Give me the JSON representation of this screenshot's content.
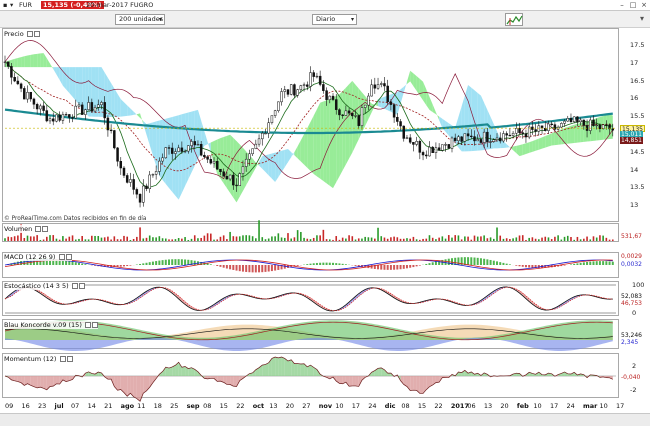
{
  "title_bar": {
    "ticker": "FUR",
    "price_change": "15,135 (-0,49%)",
    "date_name": "20-mar-2017 FUGRO"
  },
  "toolbar": {
    "units_select": "200 unidades",
    "period_select": "Diario"
  },
  "panes": {
    "price": {
      "label": "Precio",
      "y_ticks": [
        "17.5",
        "17",
        "16.5",
        "16",
        "15.5",
        "15",
        "14.5",
        "14",
        "13.5",
        "13"
      ],
      "last_values": [
        "15,135",
        "15,011",
        "14,851"
      ],
      "source_note": "© ProRealTime.com  Datos recibidos en fin de día"
    },
    "volume": {
      "label": "Volumen",
      "last_value": "531,67"
    },
    "macd": {
      "label": "MACD (12 26 9)",
      "last_values": [
        "0,0029",
        "0,0032"
      ]
    },
    "stochastic": {
      "label": "Estocástico (14 3 5)",
      "y_ticks": [
        "100",
        "0"
      ],
      "last_values": [
        "52,083",
        "46,753"
      ]
    },
    "blau": {
      "label": "Blau Koncorde v.09 (15)",
      "last_values": [
        "53,246",
        "2,345"
      ]
    },
    "momentum": {
      "label": "Momentum (12)",
      "y_ticks": [
        "2",
        "-2"
      ],
      "last_value": "-0,040"
    }
  },
  "x_axis": [
    {
      "t": "09",
      "bold": false
    },
    {
      "t": "16",
      "bold": false
    },
    {
      "t": "23",
      "bold": false
    },
    {
      "t": "jul",
      "bold": true
    },
    {
      "t": "07",
      "bold": false
    },
    {
      "t": "14",
      "bold": false
    },
    {
      "t": "21",
      "bold": false
    },
    {
      "t": "ago",
      "bold": true
    },
    {
      "t": "11",
      "bold": false
    },
    {
      "t": "18",
      "bold": false
    },
    {
      "t": "25",
      "bold": false
    },
    {
      "t": "sep",
      "bold": true
    },
    {
      "t": "08",
      "bold": false
    },
    {
      "t": "15",
      "bold": false
    },
    {
      "t": "22",
      "bold": false
    },
    {
      "t": "oct",
      "bold": true
    },
    {
      "t": "13",
      "bold": false
    },
    {
      "t": "20",
      "bold": false
    },
    {
      "t": "27",
      "bold": false
    },
    {
      "t": "nov",
      "bold": true
    },
    {
      "t": "10",
      "bold": false
    },
    {
      "t": "17",
      "bold": false
    },
    {
      "t": "24",
      "bold": false
    },
    {
      "t": "dic",
      "bold": true
    },
    {
      "t": "08",
      "bold": false
    },
    {
      "t": "15",
      "bold": false
    },
    {
      "t": "22",
      "bold": false
    },
    {
      "t": "2017",
      "bold": true
    },
    {
      "t": "06",
      "bold": false
    },
    {
      "t": "13",
      "bold": false
    },
    {
      "t": "20",
      "bold": false
    },
    {
      "t": "feb",
      "bold": true
    },
    {
      "t": "10",
      "bold": false
    },
    {
      "t": "17",
      "bold": false
    },
    {
      "t": "24",
      "bold": false
    },
    {
      "t": "mar",
      "bold": true
    },
    {
      "t": "10",
      "bold": false
    },
    {
      "t": "17",
      "bold": false
    }
  ],
  "colors": {
    "candle_up": "#1a1a1a",
    "candle_down": "#1a1a1a",
    "kumo_up": "#86e986",
    "kumo_down": "#8fdcf2",
    "ma_teal": "#1a8a92",
    "ma_brown": "#7a1a1a",
    "badge_red": "#d42020"
  }
}
